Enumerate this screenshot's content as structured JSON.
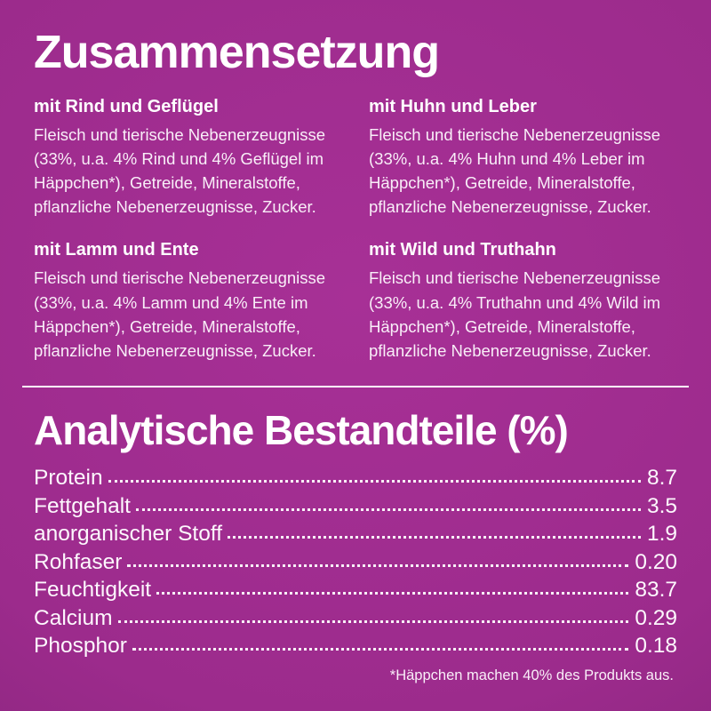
{
  "page": {
    "background_color": "#9c2b8c",
    "text_color": "#ffffff"
  },
  "composition": {
    "title": "Zusammensetzung",
    "blocks": [
      {
        "heading": "mit Rind und Geflügel",
        "body": "Fleisch und tierische Nebenerzeugnisse (33%, u.a. 4% Rind und 4% Geflügel im Häppchen*), Getreide, Mineralstoffe, pflanzliche Nebenerzeugnisse, Zucker."
      },
      {
        "heading": "mit Huhn und Leber",
        "body": "Fleisch und tierische Nebenerzeugnisse (33%, u.a. 4% Huhn und 4% Leber im Häppchen*), Getreide, Mineralstoffe, pflanzliche Nebenerzeugnisse, Zucker."
      },
      {
        "heading": "mit Lamm und Ente",
        "body": "Fleisch und tierische Nebenerzeugnisse (33%, u.a. 4% Lamm und 4% Ente im Häppchen*), Getreide, Mineralstoffe, pflanzliche Nebenerzeugnisse, Zucker."
      },
      {
        "heading": "mit Wild und Truthahn",
        "body": "Fleisch und tierische Nebenerzeugnisse (33%, u.a. 4% Truthahn und 4% Wild im Häppchen*), Getreide, Mineralstoffe, pflanzliche Nebenerzeugnisse, Zucker."
      }
    ]
  },
  "analytical": {
    "title": "Analytische Bestandteile (%)",
    "rows": [
      {
        "label": "Protein",
        "value": "8.7"
      },
      {
        "label": "Fettgehalt",
        "value": "3.5"
      },
      {
        "label": "anorganischer Stoff",
        "value": "1.9"
      },
      {
        "label": "Rohfaser",
        "value": "0.20"
      },
      {
        "label": "Feuchtigkeit",
        "value": "83.7"
      },
      {
        "label": "Calcium",
        "value": "0.29"
      },
      {
        "label": "Phosphor",
        "value": "0.18"
      }
    ]
  },
  "footnote": "*Häppchen machen 40% des Produkts aus."
}
